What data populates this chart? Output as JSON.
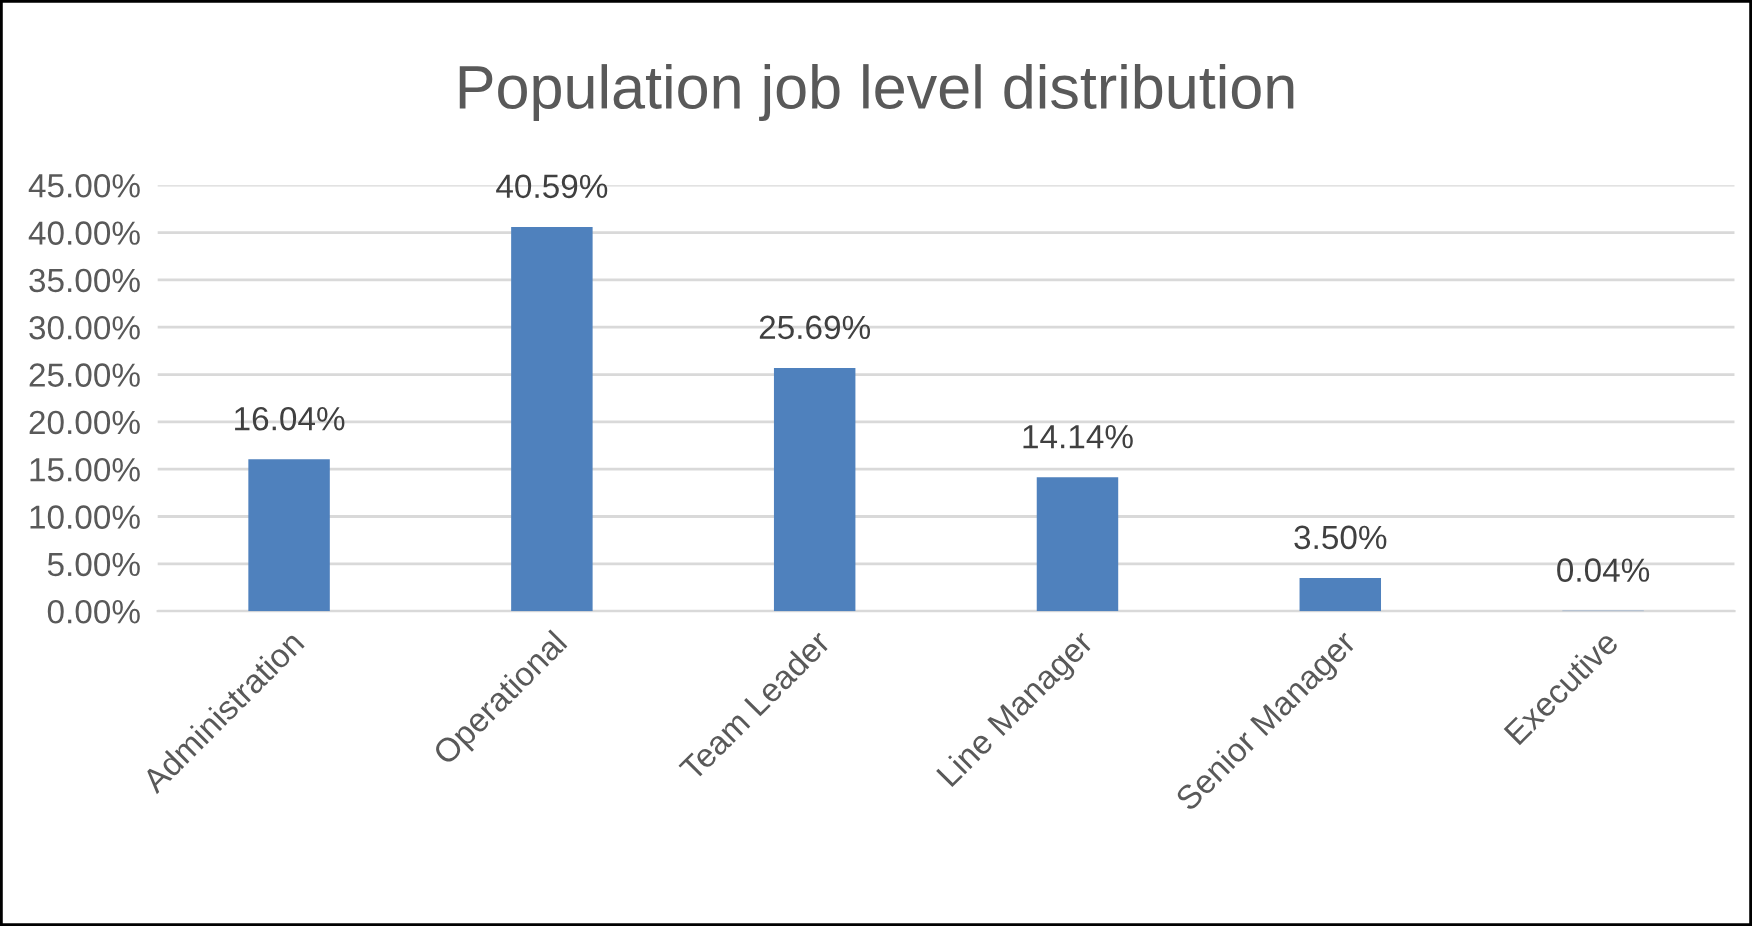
{
  "chart_data": {
    "type": "bar",
    "title": "Population job level distribution",
    "categories": [
      "Administration",
      "Operational",
      "Team Leader",
      "Line Manager",
      "Senior Manager",
      "Executive"
    ],
    "values": [
      16.04,
      40.59,
      25.69,
      14.14,
      3.5,
      0.04
    ],
    "value_labels": [
      "16.04%",
      "40.59%",
      "25.69%",
      "14.14%",
      "3.50%",
      "0.04%"
    ],
    "color": "#4f81bd",
    "ylim": [
      0,
      45
    ],
    "yticks": [
      {
        "value": 0,
        "label": "0.00%"
      },
      {
        "value": 5,
        "label": "5.00%"
      },
      {
        "value": 10,
        "label": "10.00%"
      },
      {
        "value": 15,
        "label": "15.00%"
      },
      {
        "value": 20,
        "label": "20.00%"
      },
      {
        "value": 25,
        "label": "25.00%"
      },
      {
        "value": 30,
        "label": "30.00%"
      },
      {
        "value": 35,
        "label": "35.00%"
      },
      {
        "value": 40,
        "label": "40.00%"
      },
      {
        "value": 45,
        "label": "45.00%"
      }
    ],
    "grid": "y"
  }
}
